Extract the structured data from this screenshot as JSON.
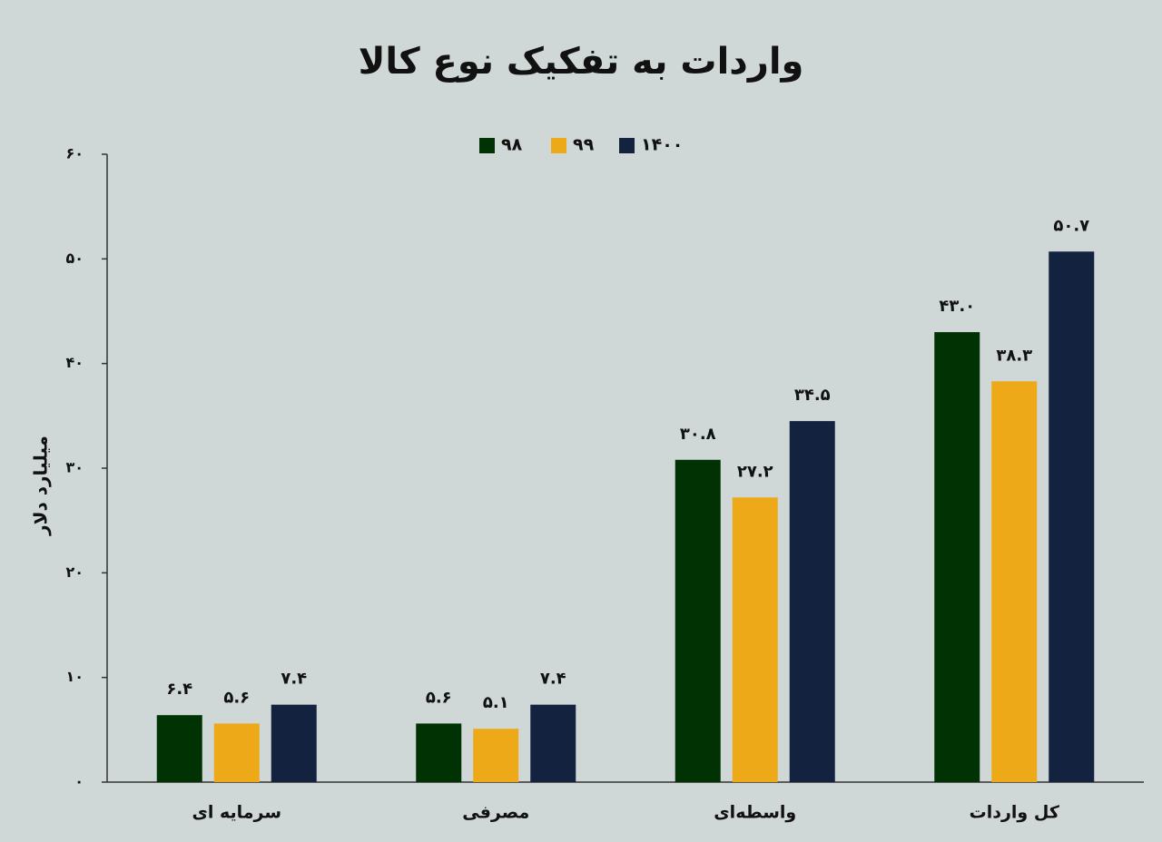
{
  "chart_data": {
    "type": "bar",
    "title": "واردات به تفکیک نوع کالا",
    "y_label": "میلیارد دلار",
    "categories": [
      "سرمایه ای",
      "مصرفی",
      "واسطه‌ای",
      "کل واردات"
    ],
    "series": [
      {
        "name": "۹۸",
        "color": "#013203",
        "values": [
          6.4,
          5.6,
          30.8,
          43.0
        ],
        "value_labels": [
          "۶.۴",
          "۵.۶",
          "۳۰.۸",
          "۴۳.۰"
        ]
      },
      {
        "name": "۹۹",
        "color": "#eda917",
        "values": [
          5.6,
          5.1,
          27.2,
          38.3
        ],
        "value_labels": [
          "۵.۶",
          "۵.۱",
          "۲۷.۲",
          "۳۸.۳"
        ]
      },
      {
        "name": "۱۴۰۰",
        "color": "#12223f",
        "values": [
          7.4,
          7.4,
          34.5,
          50.7
        ],
        "value_labels": [
          "۷.۴",
          "۷.۴",
          "۳۴.۵",
          "۵۰.۷"
        ]
      }
    ],
    "ylim": [
      0,
      60
    ],
    "yticks": [
      {
        "value": 0,
        "label": "۰"
      },
      {
        "value": 10,
        "label": "۱۰"
      },
      {
        "value": 20,
        "label": "۲۰"
      },
      {
        "value": 30,
        "label": "۳۰"
      },
      {
        "value": 40,
        "label": "۴۰"
      },
      {
        "value": 50,
        "label": "۵۰"
      },
      {
        "value": 60,
        "label": "۶۰"
      }
    ],
    "legend": "top"
  }
}
